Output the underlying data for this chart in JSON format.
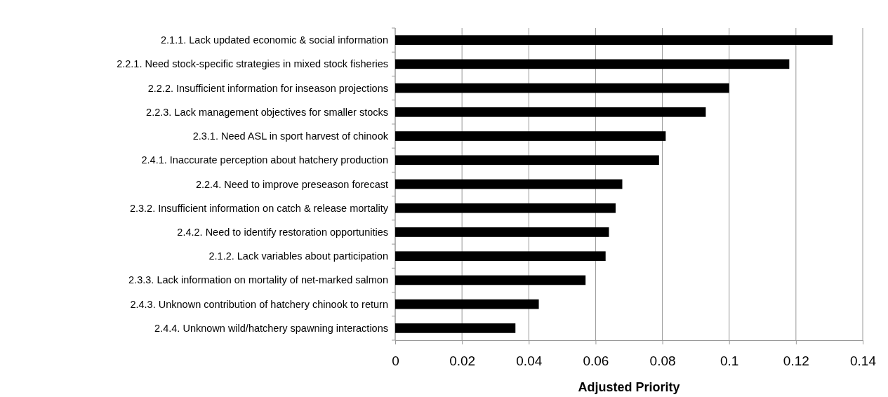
{
  "chart_data": {
    "type": "bar",
    "orientation": "horizontal",
    "xlabel": "Adjusted Priority",
    "categories": [
      "2.1.1. Lack updated economic & social information",
      "2.2.1. Need stock-specific strategies in mixed stock fisheries",
      "2.2.2. Insufficient information for inseason projections",
      "2.2.3. Lack management objectives for smaller stocks",
      "2.3.1. Need ASL in sport harvest of chinook",
      "2.4.1. Inaccurate perception about hatchery production",
      "2.2.4. Need to improve preseason forecast",
      "2.3.2. Insufficient information on catch & release mortality",
      "2.4.2. Need to identify restoration opportunities",
      "2.1.2. Lack variables about participation",
      "2.3.3. Lack information on mortality of net-marked salmon",
      "2.4.3. Unknown contribution of hatchery chinook to return",
      "2.4.4. Unknown wild/hatchery spawning interactions"
    ],
    "values": [
      0.131,
      0.118,
      0.1,
      0.093,
      0.081,
      0.079,
      0.068,
      0.066,
      0.064,
      0.063,
      0.057,
      0.043,
      0.036
    ],
    "color": "#000000",
    "xlim": [
      0,
      0.14
    ],
    "xticks": [
      0,
      0.02,
      0.04,
      0.06,
      0.08,
      0.1,
      0.12,
      0.14
    ],
    "grid": "x"
  }
}
